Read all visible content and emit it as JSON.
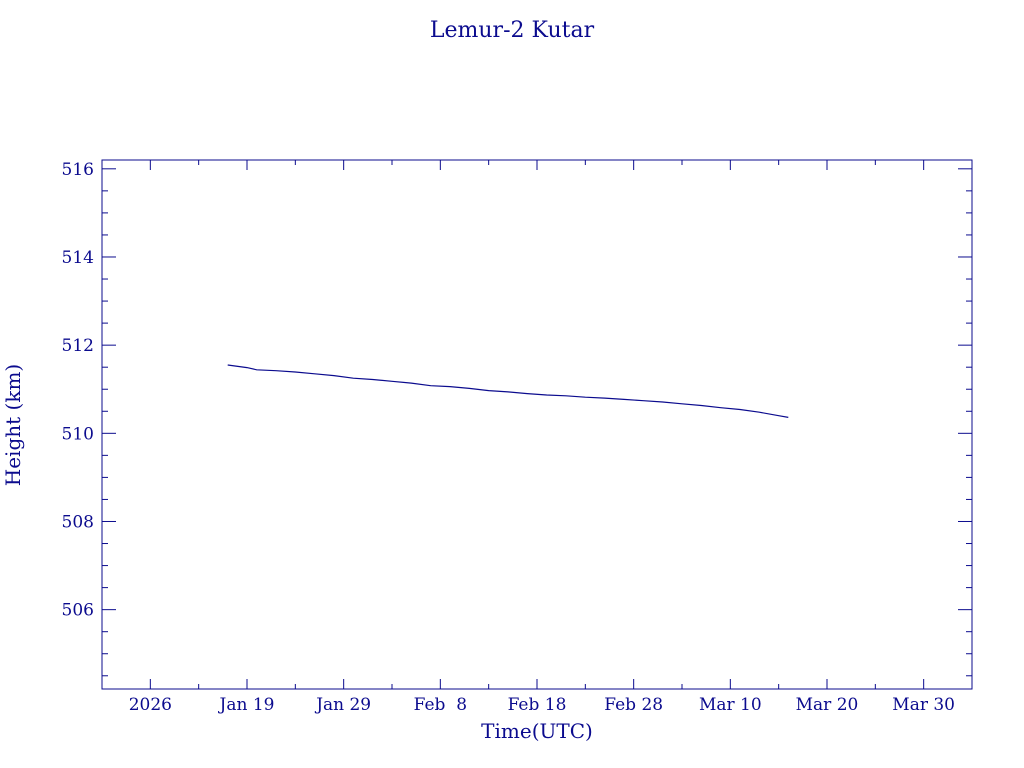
{
  "chart_data": {
    "type": "line",
    "title": "Lemur-2 Kutar",
    "xlabel": "Time(UTC)",
    "ylabel": "Height (km)",
    "color": "#0b0b8e",
    "grid": false,
    "legend": "none",
    "xlim": [
      "2026-01-04",
      "2026-04-04"
    ],
    "ylim": [
      504.2,
      516.2
    ],
    "x_ticks": [
      {
        "date": "2026-01-09",
        "label": "2026"
      },
      {
        "date": "2026-01-19",
        "label": "Jan 19"
      },
      {
        "date": "2026-01-29",
        "label": "Jan 29"
      },
      {
        "date": "2026-02-08",
        "label": "Feb  8"
      },
      {
        "date": "2026-02-18",
        "label": "Feb 18"
      },
      {
        "date": "2026-02-28",
        "label": "Feb 28"
      },
      {
        "date": "2026-03-10",
        "label": "Mar 10"
      },
      {
        "date": "2026-03-20",
        "label": "Mar 20"
      },
      {
        "date": "2026-03-30",
        "label": "Mar 30"
      }
    ],
    "y_ticks": [
      {
        "value": 506,
        "label": "506"
      },
      {
        "value": 508,
        "label": "508"
      },
      {
        "value": 510,
        "label": "510"
      },
      {
        "value": 512,
        "label": "512"
      },
      {
        "value": 514,
        "label": "514"
      },
      {
        "value": 516,
        "label": "516"
      }
    ],
    "series": [
      {
        "x": [
          "2026-01-17",
          "2026-01-19",
          "2026-01-20",
          "2026-01-22",
          "2026-01-24",
          "2026-01-26",
          "2026-01-28",
          "2026-01-30",
          "2026-02-01",
          "2026-02-03",
          "2026-02-05",
          "2026-02-07",
          "2026-02-09",
          "2026-02-11",
          "2026-02-13",
          "2026-02-15",
          "2026-02-17",
          "2026-02-19",
          "2026-02-21",
          "2026-02-23",
          "2026-02-25",
          "2026-02-27",
          "2026-03-01",
          "2026-03-03",
          "2026-03-05",
          "2026-03-07",
          "2026-03-09",
          "2026-03-11",
          "2026-03-13",
          "2026-03-15",
          "2026-03-16"
        ],
        "y": [
          511.55,
          511.49,
          511.44,
          511.42,
          511.39,
          511.35,
          511.31,
          511.25,
          511.22,
          511.18,
          511.14,
          511.08,
          511.06,
          511.02,
          510.97,
          510.94,
          510.9,
          510.87,
          510.85,
          510.82,
          510.8,
          510.77,
          510.74,
          510.71,
          510.67,
          510.63,
          510.58,
          510.54,
          510.48,
          510.4,
          510.36
        ]
      }
    ]
  }
}
